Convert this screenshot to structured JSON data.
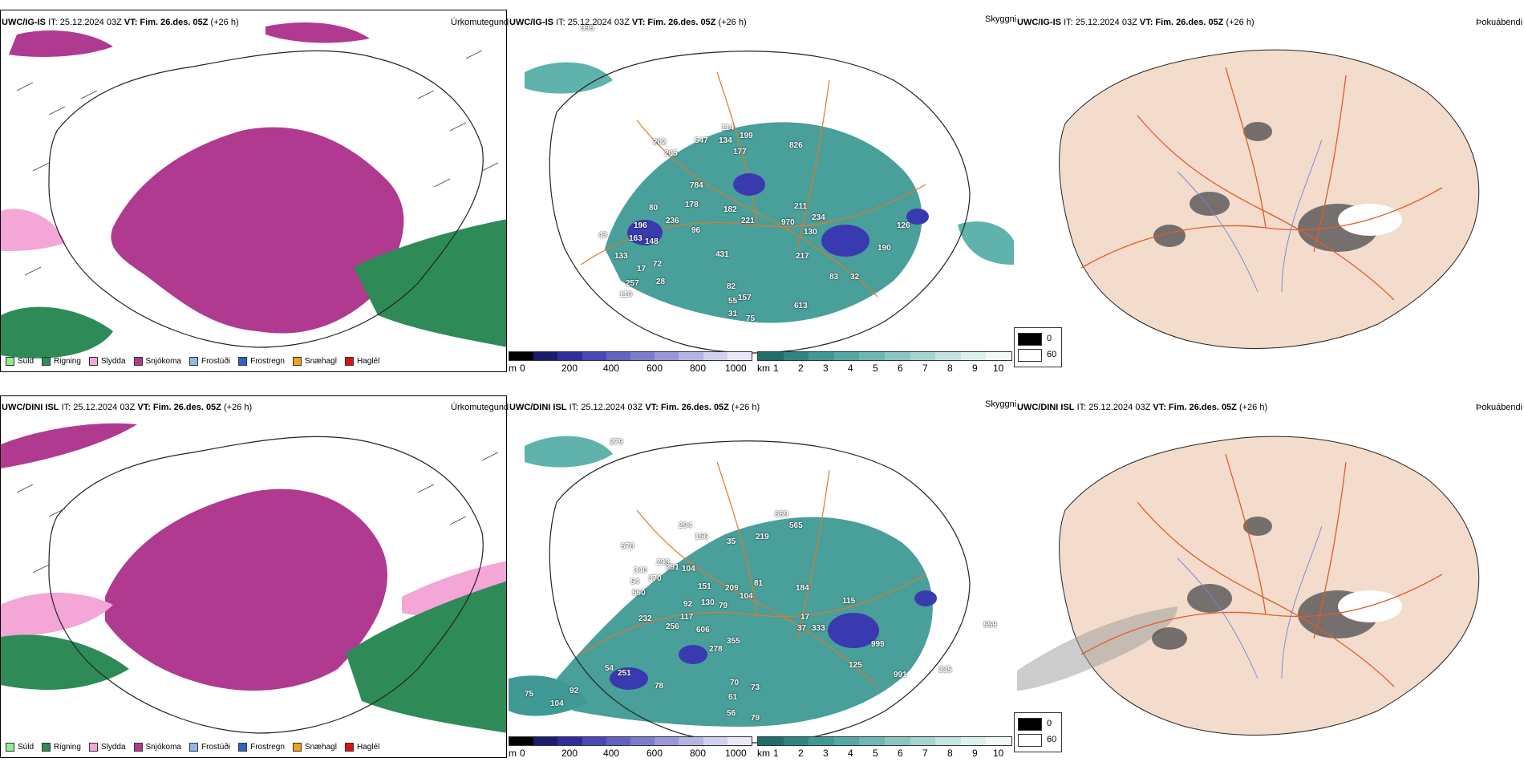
{
  "rows": [
    {
      "model": "UWC/IG-IS",
      "it_label": "IT: 25.12.2024 03Z",
      "vt_label": "VT: Fim. 26.des. 05Z",
      "lead": "(+26 h)",
      "panel_titles": {
        "precip": "Úrkomutegund",
        "cloud": "Skyggni",
        "fog": "Þokuábendi"
      },
      "ceiling_values": [
        "995",
        "114",
        "199",
        "134",
        "177",
        "826",
        "202",
        "547",
        "205",
        "784",
        "178",
        "182",
        "211",
        "80",
        "236",
        "221",
        "234",
        "196",
        "96",
        "970",
        "130",
        "163",
        "43",
        "148",
        "431",
        "217",
        "133",
        "72",
        "17",
        "28",
        "82",
        "257",
        "157",
        "110",
        "55",
        "31",
        "75",
        "613",
        "32",
        "126",
        "190",
        "83"
      ]
    },
    {
      "model": "UWC/DINI ISL",
      "it_label": "IT: 25.12.2024 03Z",
      "vt_label": "VT: Fim. 26.des. 05Z",
      "lead": "(+26 h)",
      "panel_titles": {
        "precip": "Úrkomutegund",
        "cloud": "Skyggni",
        "fog": "Þokuábendi"
      },
      "ceiling_values": [
        "279",
        "669",
        "565",
        "294",
        "156",
        "219",
        "678",
        "35",
        "293",
        "340",
        "291",
        "104",
        "54",
        "370",
        "151",
        "209",
        "81",
        "184",
        "560",
        "92",
        "130",
        "79",
        "104",
        "117",
        "232",
        "256",
        "606",
        "115",
        "37",
        "333",
        "17",
        "355",
        "278",
        "999",
        "559",
        "54",
        "251",
        "125",
        "78",
        "70",
        "73",
        "75",
        "92",
        "61",
        "56",
        "79",
        "991",
        "335",
        "104"
      ]
    }
  ],
  "precip_legend": [
    {
      "label": "Súld",
      "color": "#90ee90"
    },
    {
      "label": "Rigning",
      "color": "#2e8b57"
    },
    {
      "label": "Slydda",
      "color": "#f4a6d7"
    },
    {
      "label": "Snjókoma",
      "color": "#b03a90"
    },
    {
      "label": "Frostúði",
      "color": "#8fb8e8"
    },
    {
      "label": "Frostregn",
      "color": "#2f62c8"
    },
    {
      "label": "Snæhagl",
      "color": "#f0a020"
    },
    {
      "label": "Haglél",
      "color": "#e01010"
    }
  ],
  "ceiling_scale": {
    "unit": "m",
    "ticks": [
      "0",
      "200",
      "400",
      "600",
      "800",
      "1000"
    ]
  },
  "vis_scale": {
    "unit": "km",
    "ticks": [
      "1",
      "2",
      "3",
      "4",
      "5",
      "6",
      "7",
      "8",
      "9",
      "10"
    ]
  },
  "fog_legend": [
    {
      "label": "0",
      "color": "#000000"
    },
    {
      "label": "60",
      "color": "#ffffff"
    }
  ],
  "colors": {
    "snow": "#b03a90",
    "rain": "#2e8b57",
    "sleet": "#f4a6d7",
    "teal": "#3f9a95",
    "land": "#f3dccb",
    "roads": "#e05a2a"
  }
}
